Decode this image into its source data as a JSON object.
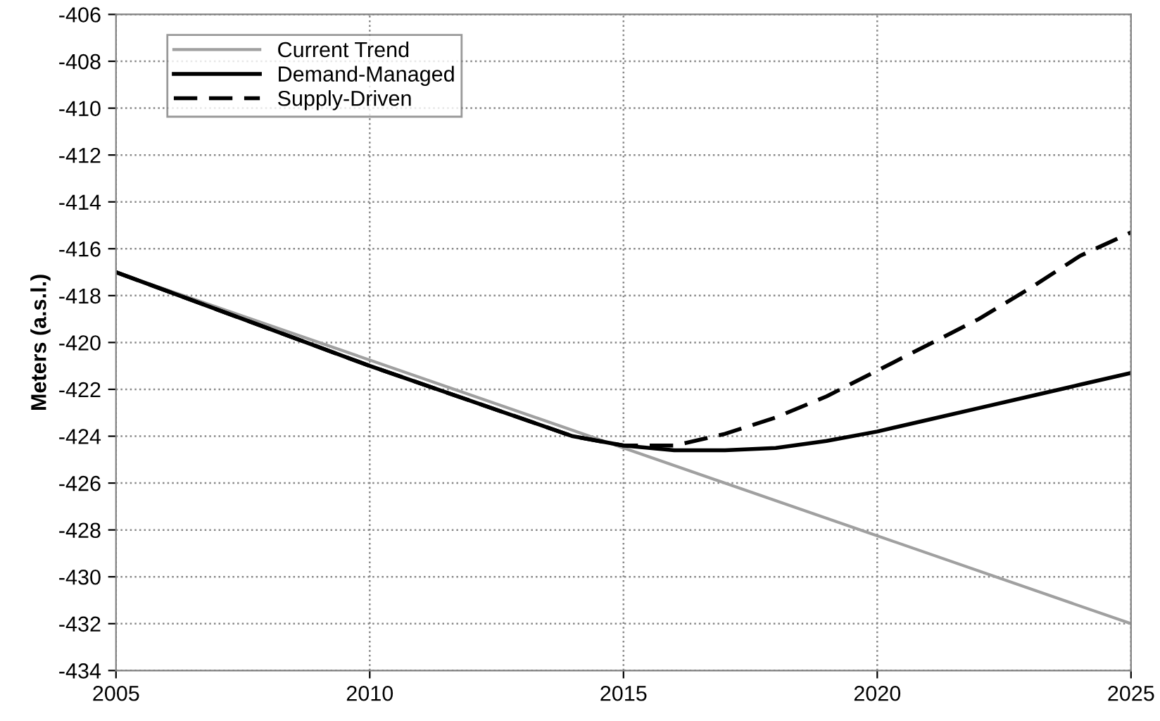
{
  "chart_data": {
    "type": "line",
    "ylabel": "Meters (a.s.l.)",
    "xlim": [
      2005,
      2025
    ],
    "xticks": [
      2005,
      2010,
      2015,
      2020,
      2025
    ],
    "ylim": [
      -434,
      -406
    ],
    "yticks": [
      -434,
      -432,
      -430,
      -428,
      -426,
      -424,
      -422,
      -420,
      -418,
      -416,
      -414,
      -412,
      -410,
      -408,
      -406
    ],
    "grid": true,
    "legend": "top left",
    "marker": "none",
    "series": [
      {
        "name": "Current Trend",
        "color": "#a0a0a0",
        "line_style": "solid",
        "x": [
          2005,
          2025
        ],
        "values": [
          -417,
          -432
        ]
      },
      {
        "name": "Demand-Managed",
        "color": "#000000",
        "line_style": "solid",
        "x": [
          2005,
          2010,
          2014,
          2015,
          2016,
          2017,
          2018,
          2019,
          2020,
          2021,
          2022,
          2023,
          2024,
          2025
        ],
        "values": [
          -417,
          -421,
          -424,
          -424.4,
          -424.6,
          -424.6,
          -424.5,
          -424.2,
          -423.8,
          -423.3,
          -422.8,
          -422.3,
          -421.8,
          -421.3
        ]
      },
      {
        "name": "Supply-Driven",
        "color": "#000000",
        "line_style": "dashed",
        "x": [
          2005,
          2010,
          2014,
          2015,
          2016,
          2017,
          2018,
          2019,
          2020,
          2021,
          2022,
          2023,
          2024,
          2025
        ],
        "values": [
          -417,
          -421,
          -424,
          -424.4,
          -424.4,
          -423.9,
          -423.2,
          -422.3,
          -421.2,
          -420.1,
          -419,
          -417.7,
          -416.3,
          -415.3
        ]
      }
    ]
  }
}
